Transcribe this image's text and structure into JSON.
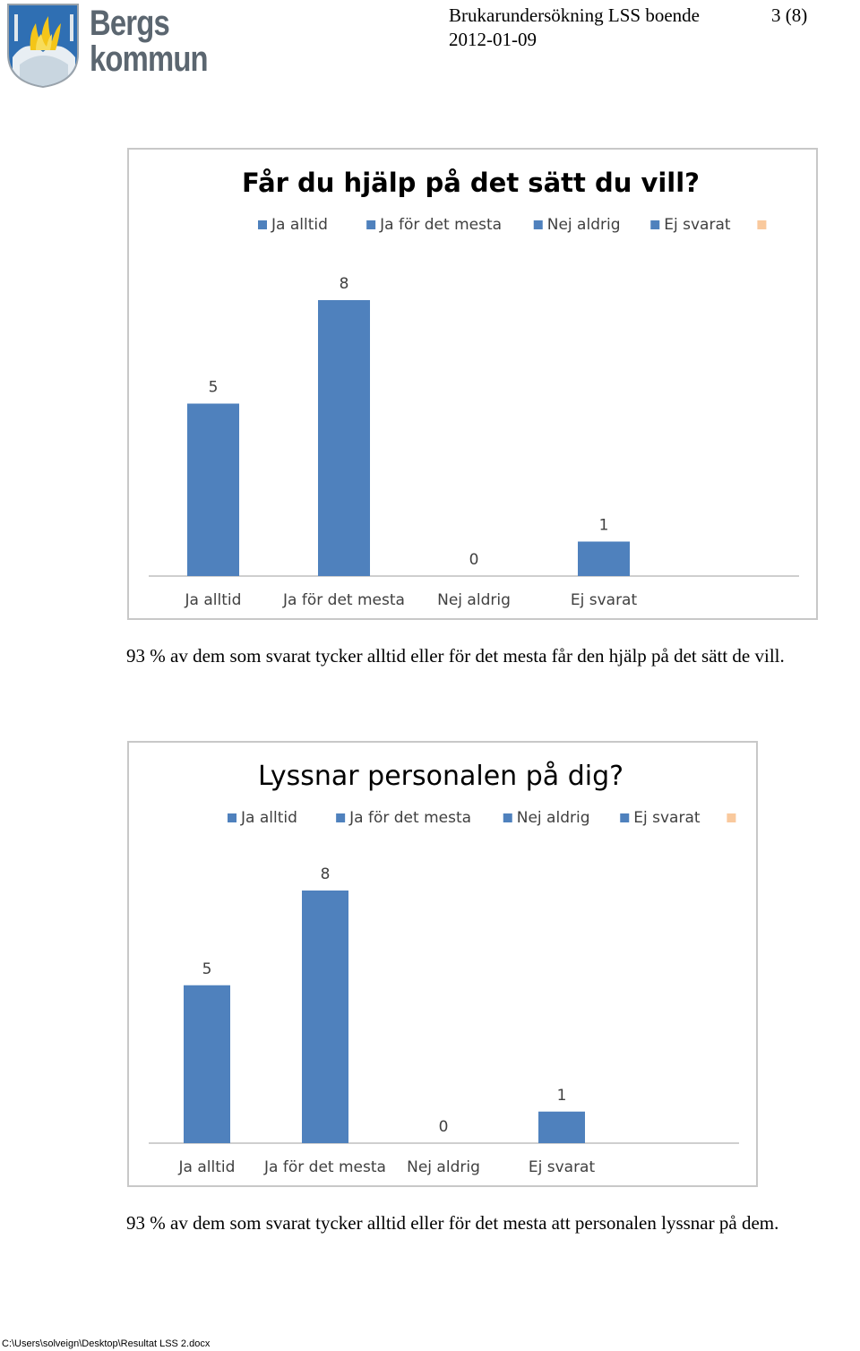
{
  "header": {
    "logo_text_line1": "Bergs",
    "logo_text_line2": "kommun",
    "document_title": "Brukarundersökning LSS boende",
    "page_number": "3 (8)",
    "date": "2012-01-09"
  },
  "colors": {
    "bar": "#4f81bd",
    "legend_extra": "#f9c99d",
    "axis": "#bfbfbf",
    "border": "#c8c8c8"
  },
  "chart_data": [
    {
      "type": "bar",
      "title": "Får du hjälp på det sätt du vill?",
      "categories": [
        "Ja alltid",
        "Ja för det mesta",
        "Nej aldrig",
        "Ej svarat"
      ],
      "values": [
        5,
        8,
        0,
        1
      ],
      "legend": [
        "Ja alltid",
        "Ja för det mesta",
        "Nej aldrig",
        "Ej svarat",
        ""
      ],
      "legend_position": "top",
      "grid": false,
      "ylim": [
        0,
        8
      ],
      "data_labels": true
    },
    {
      "type": "bar",
      "title": "Lyssnar personalen på dig?",
      "categories": [
        "Ja alltid",
        "Ja för det mesta",
        "Nej aldrig",
        "Ej svarat"
      ],
      "values": [
        5,
        8,
        0,
        1
      ],
      "legend": [
        "Ja alltid",
        "Ja för det mesta",
        "Nej aldrig",
        "Ej svarat",
        ""
      ],
      "legend_position": "top",
      "grid": false,
      "ylim": [
        0,
        8
      ],
      "data_labels": true
    }
  ],
  "captions": [
    "93 % av dem som svarat tycker alltid eller för det mesta får den hjälp på det sätt de vill.",
    "93 % av dem som svarat tycker alltid eller för det mesta att personalen lyssnar på dem."
  ],
  "footer": {
    "file_path": "C:\\Users\\solveign\\Desktop\\Resultat LSS 2.docx"
  }
}
